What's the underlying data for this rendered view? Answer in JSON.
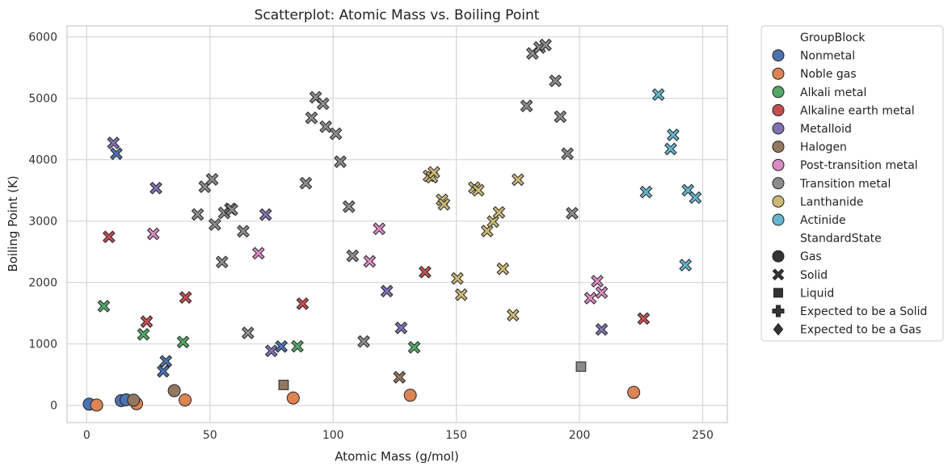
{
  "chart_data": {
    "type": "scatter",
    "title": "Scatterplot: Atomic Mass vs. Boiling Point",
    "xlabel": "Atomic Mass (g/mol)",
    "ylabel": "Boiling Point (K)",
    "xlim": [
      -8,
      260
    ],
    "ylim": [
      -280,
      6180
    ],
    "xticks": [
      0,
      50,
      100,
      150,
      200,
      250
    ],
    "yticks": [
      0,
      1000,
      2000,
      3000,
      4000,
      5000,
      6000
    ],
    "grid": true,
    "legend_position": "outside-right",
    "hue_title": "GroupBlock",
    "style_title": "StandardState",
    "groups": [
      {
        "name": "Nonmetal",
        "color": "#4C72B0"
      },
      {
        "name": "Noble gas",
        "color": "#DD8452"
      },
      {
        "name": "Alkali metal",
        "color": "#55A868"
      },
      {
        "name": "Alkaline earth metal",
        "color": "#C44E52"
      },
      {
        "name": "Metalloid",
        "color": "#8172B3"
      },
      {
        "name": "Halogen",
        "color": "#937860"
      },
      {
        "name": "Post-transition metal",
        "color": "#DA8BC3"
      },
      {
        "name": "Transition metal",
        "color": "#8C8C8C"
      },
      {
        "name": "Lanthanide",
        "color": "#CCB974"
      },
      {
        "name": "Actinide",
        "color": "#64B5CD"
      }
    ],
    "states": [
      {
        "name": "Gas",
        "marker": "circle"
      },
      {
        "name": "Solid",
        "marker": "x"
      },
      {
        "name": "Liquid",
        "marker": "square"
      },
      {
        "name": "Expected to be a Solid",
        "marker": "plus"
      },
      {
        "name": "Expected to be a Gas",
        "marker": "diamond"
      }
    ],
    "points": [
      {
        "x": 1.0,
        "y": 20,
        "group": "Nonmetal",
        "state": "Gas"
      },
      {
        "x": 14.0,
        "y": 77,
        "group": "Nonmetal",
        "state": "Gas"
      },
      {
        "x": 16.0,
        "y": 90,
        "group": "Nonmetal",
        "state": "Gas"
      },
      {
        "x": 12.0,
        "y": 4098,
        "group": "Nonmetal",
        "state": "Solid"
      },
      {
        "x": 31.0,
        "y": 554,
        "group": "Nonmetal",
        "state": "Solid"
      },
      {
        "x": 32.1,
        "y": 718,
        "group": "Nonmetal",
        "state": "Solid"
      },
      {
        "x": 79.0,
        "y": 958,
        "group": "Nonmetal",
        "state": "Solid"
      },
      {
        "x": 4.0,
        "y": 4,
        "group": "Noble gas",
        "state": "Gas"
      },
      {
        "x": 20.2,
        "y": 27,
        "group": "Noble gas",
        "state": "Gas"
      },
      {
        "x": 39.9,
        "y": 87,
        "group": "Noble gas",
        "state": "Gas"
      },
      {
        "x": 83.8,
        "y": 120,
        "group": "Noble gas",
        "state": "Gas"
      },
      {
        "x": 131.3,
        "y": 165,
        "group": "Noble gas",
        "state": "Gas"
      },
      {
        "x": 222.0,
        "y": 211,
        "group": "Noble gas",
        "state": "Gas"
      },
      {
        "x": 6.9,
        "y": 1615,
        "group": "Alkali metal",
        "state": "Solid"
      },
      {
        "x": 23.0,
        "y": 1156,
        "group": "Alkali metal",
        "state": "Solid"
      },
      {
        "x": 39.1,
        "y": 1032,
        "group": "Alkali metal",
        "state": "Solid"
      },
      {
        "x": 85.5,
        "y": 961,
        "group": "Alkali metal",
        "state": "Solid"
      },
      {
        "x": 132.9,
        "y": 944,
        "group": "Alkali metal",
        "state": "Solid"
      },
      {
        "x": 9.0,
        "y": 2744,
        "group": "Alkaline earth metal",
        "state": "Solid"
      },
      {
        "x": 24.3,
        "y": 1363,
        "group": "Alkaline earth metal",
        "state": "Solid"
      },
      {
        "x": 40.1,
        "y": 1757,
        "group": "Alkaline earth metal",
        "state": "Solid"
      },
      {
        "x": 87.6,
        "y": 1655,
        "group": "Alkaline earth metal",
        "state": "Solid"
      },
      {
        "x": 137.3,
        "y": 2170,
        "group": "Alkaline earth metal",
        "state": "Solid"
      },
      {
        "x": 226.0,
        "y": 1413,
        "group": "Alkaline earth metal",
        "state": "Solid"
      },
      {
        "x": 10.8,
        "y": 4273,
        "group": "Metalloid",
        "state": "Solid"
      },
      {
        "x": 28.1,
        "y": 3538,
        "group": "Metalloid",
        "state": "Solid"
      },
      {
        "x": 72.6,
        "y": 3106,
        "group": "Metalloid",
        "state": "Solid"
      },
      {
        "x": 74.9,
        "y": 887,
        "group": "Metalloid",
        "state": "Solid"
      },
      {
        "x": 121.8,
        "y": 1860,
        "group": "Metalloid",
        "state": "Solid"
      },
      {
        "x": 127.6,
        "y": 1261,
        "group": "Metalloid",
        "state": "Solid"
      },
      {
        "x": 209.0,
        "y": 1235,
        "group": "Metalloid",
        "state": "Solid"
      },
      {
        "x": 19.0,
        "y": 85,
        "group": "Halogen",
        "state": "Gas"
      },
      {
        "x": 35.5,
        "y": 239,
        "group": "Halogen",
        "state": "Gas"
      },
      {
        "x": 79.9,
        "y": 332,
        "group": "Halogen",
        "state": "Liquid"
      },
      {
        "x": 126.9,
        "y": 457,
        "group": "Halogen",
        "state": "Solid"
      },
      {
        "x": 27.0,
        "y": 2792,
        "group": "Post-transition metal",
        "state": "Solid"
      },
      {
        "x": 69.7,
        "y": 2477,
        "group": "Post-transition metal",
        "state": "Solid"
      },
      {
        "x": 114.8,
        "y": 2345,
        "group": "Post-transition metal",
        "state": "Solid"
      },
      {
        "x": 118.7,
        "y": 2875,
        "group": "Post-transition metal",
        "state": "Solid"
      },
      {
        "x": 204.4,
        "y": 1746,
        "group": "Post-transition metal",
        "state": "Solid"
      },
      {
        "x": 207.2,
        "y": 2022,
        "group": "Post-transition metal",
        "state": "Solid"
      },
      {
        "x": 209.0,
        "y": 1837,
        "group": "Post-transition metal",
        "state": "Solid"
      },
      {
        "x": 45.0,
        "y": 3109,
        "group": "Transition metal",
        "state": "Solid"
      },
      {
        "x": 47.9,
        "y": 3560,
        "group": "Transition metal",
        "state": "Solid"
      },
      {
        "x": 50.9,
        "y": 3680,
        "group": "Transition metal",
        "state": "Solid"
      },
      {
        "x": 52.0,
        "y": 2944,
        "group": "Transition metal",
        "state": "Solid"
      },
      {
        "x": 54.9,
        "y": 2334,
        "group": "Transition metal",
        "state": "Solid"
      },
      {
        "x": 55.8,
        "y": 3134,
        "group": "Transition metal",
        "state": "Solid"
      },
      {
        "x": 58.3,
        "y": 3200,
        "group": "Transition metal",
        "state": "Solid"
      },
      {
        "x": 58.9,
        "y": 3186,
        "group": "Transition metal",
        "state": "Solid"
      },
      {
        "x": 63.5,
        "y": 2835,
        "group": "Transition metal",
        "state": "Solid"
      },
      {
        "x": 65.4,
        "y": 1180,
        "group": "Transition metal",
        "state": "Solid"
      },
      {
        "x": 88.9,
        "y": 3618,
        "group": "Transition metal",
        "state": "Solid"
      },
      {
        "x": 91.2,
        "y": 4682,
        "group": "Transition metal",
        "state": "Solid"
      },
      {
        "x": 92.9,
        "y": 5017,
        "group": "Transition metal",
        "state": "Solid"
      },
      {
        "x": 95.9,
        "y": 4912,
        "group": "Transition metal",
        "state": "Solid"
      },
      {
        "x": 97.0,
        "y": 4538,
        "group": "Transition metal",
        "state": "Solid"
      },
      {
        "x": 101.1,
        "y": 4423,
        "group": "Transition metal",
        "state": "Solid"
      },
      {
        "x": 102.9,
        "y": 3968,
        "group": "Transition metal",
        "state": "Solid"
      },
      {
        "x": 106.4,
        "y": 3236,
        "group": "Transition metal",
        "state": "Solid"
      },
      {
        "x": 107.9,
        "y": 2435,
        "group": "Transition metal",
        "state": "Solid"
      },
      {
        "x": 112.4,
        "y": 1040,
        "group": "Transition metal",
        "state": "Solid"
      },
      {
        "x": 178.5,
        "y": 4876,
        "group": "Transition metal",
        "state": "Solid"
      },
      {
        "x": 180.9,
        "y": 5731,
        "group": "Transition metal",
        "state": "Solid"
      },
      {
        "x": 183.8,
        "y": 5828,
        "group": "Transition metal",
        "state": "Solid"
      },
      {
        "x": 186.2,
        "y": 5869,
        "group": "Transition metal",
        "state": "Solid"
      },
      {
        "x": 190.2,
        "y": 5285,
        "group": "Transition metal",
        "state": "Solid"
      },
      {
        "x": 192.2,
        "y": 4701,
        "group": "Transition metal",
        "state": "Solid"
      },
      {
        "x": 195.1,
        "y": 4098,
        "group": "Transition metal",
        "state": "Solid"
      },
      {
        "x": 197.0,
        "y": 3129,
        "group": "Transition metal",
        "state": "Solid"
      },
      {
        "x": 200.6,
        "y": 630,
        "group": "Transition metal",
        "state": "Liquid"
      },
      {
        "x": 138.9,
        "y": 3737,
        "group": "Lanthanide",
        "state": "Solid"
      },
      {
        "x": 140.1,
        "y": 3716,
        "group": "Lanthanide",
        "state": "Solid"
      },
      {
        "x": 140.9,
        "y": 3793,
        "group": "Lanthanide",
        "state": "Solid"
      },
      {
        "x": 144.2,
        "y": 3347,
        "group": "Lanthanide",
        "state": "Solid"
      },
      {
        "x": 145.0,
        "y": 3273,
        "group": "Lanthanide",
        "state": "Solid"
      },
      {
        "x": 150.4,
        "y": 2067,
        "group": "Lanthanide",
        "state": "Solid"
      },
      {
        "x": 152.0,
        "y": 1802,
        "group": "Lanthanide",
        "state": "Solid"
      },
      {
        "x": 157.3,
        "y": 3546,
        "group": "Lanthanide",
        "state": "Solid"
      },
      {
        "x": 158.9,
        "y": 3503,
        "group": "Lanthanide",
        "state": "Solid"
      },
      {
        "x": 162.5,
        "y": 2840,
        "group": "Lanthanide",
        "state": "Solid"
      },
      {
        "x": 164.9,
        "y": 2993,
        "group": "Lanthanide",
        "state": "Solid"
      },
      {
        "x": 167.3,
        "y": 3141,
        "group": "Lanthanide",
        "state": "Solid"
      },
      {
        "x": 168.9,
        "y": 2223,
        "group": "Lanthanide",
        "state": "Solid"
      },
      {
        "x": 173.0,
        "y": 1469,
        "group": "Lanthanide",
        "state": "Solid"
      },
      {
        "x": 175.0,
        "y": 3675,
        "group": "Lanthanide",
        "state": "Solid"
      },
      {
        "x": 227.0,
        "y": 3473,
        "group": "Actinide",
        "state": "Solid"
      },
      {
        "x": 232.0,
        "y": 5061,
        "group": "Actinide",
        "state": "Solid"
      },
      {
        "x": 237.0,
        "y": 4175,
        "group": "Actinide",
        "state": "Solid"
      },
      {
        "x": 238.0,
        "y": 4404,
        "group": "Actinide",
        "state": "Solid"
      },
      {
        "x": 243.0,
        "y": 2284,
        "group": "Actinide",
        "state": "Solid"
      },
      {
        "x": 244.0,
        "y": 3503,
        "group": "Actinide",
        "state": "Solid"
      },
      {
        "x": 247.0,
        "y": 3383,
        "group": "Actinide",
        "state": "Solid"
      }
    ]
  }
}
